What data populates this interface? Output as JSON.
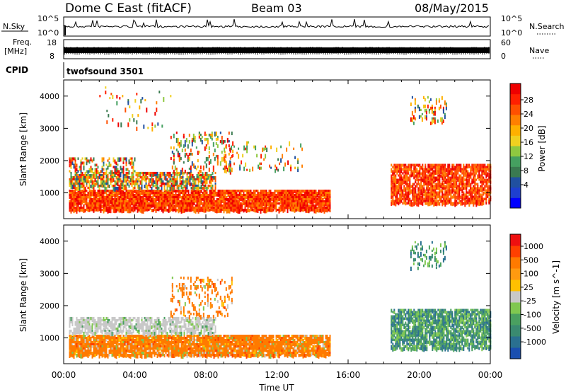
{
  "header": {
    "station": "Dome C East (fitACF)",
    "beam": "Beam 03",
    "date": "08/May/2015"
  },
  "aux_panels": {
    "nsky": {
      "left_label": "N.Sky",
      "top_tick": "10^5",
      "bottom_tick": "10^0",
      "right_top_tick": "10^5",
      "right_bottom_tick": "10^0",
      "right_label": "N.Search"
    },
    "freq": {
      "left_label_1": "Freq.",
      "left_label_2": "[MHz]",
      "top_tick": "18",
      "bottom_tick": "8",
      "right_top_tick": "60",
      "right_bottom_tick": "0",
      "right_label": "Nave"
    },
    "cpid": {
      "left_label": "CPID",
      "program": "twofsound 3501"
    }
  },
  "chart_data": [
    {
      "type": "heatmap",
      "name": "power",
      "ylabel": "Slant Range [km]",
      "ylim": [
        200,
        4500
      ],
      "yticks": [
        1000,
        2000,
        3000,
        4000
      ],
      "xlim": [
        0,
        24
      ],
      "colorbar": {
        "label": "Power [dB]",
        "ticks": [
          "28",
          "24",
          "20",
          "16",
          "12",
          "8",
          "4"
        ],
        "colors": [
          "#0000ff",
          "#1e3fd0",
          "#2050a0",
          "#3a7a50",
          "#45a060",
          "#8fc840",
          "#f0d020",
          "#ffb000",
          "#ff8000",
          "#ff5000",
          "#ff2000",
          "#ee0000"
        ]
      },
      "regions": [
        {
          "t0": 0.3,
          "t1": 15.0,
          "r0": 450,
          "r1": 1100,
          "density": 0.9
        },
        {
          "t0": 0.3,
          "t1": 8.5,
          "r0": 1150,
          "r1": 1650,
          "density": 0.65
        },
        {
          "t0": 0.3,
          "t1": 4.0,
          "r0": 1700,
          "r1": 2100,
          "density": 0.35
        },
        {
          "t0": 6.0,
          "t1": 9.5,
          "r0": 1700,
          "r1": 2900,
          "density": 0.2
        },
        {
          "t0": 9.0,
          "t1": 13.5,
          "r0": 1700,
          "r1": 2600,
          "density": 0.1
        },
        {
          "t0": 18.4,
          "t1": 24.0,
          "r0": 700,
          "r1": 1900,
          "density": 0.75
        },
        {
          "t0": 19.5,
          "t1": 21.5,
          "r0": 3200,
          "r1": 4000,
          "density": 0.25
        },
        {
          "t0": 2.0,
          "t1": 6.0,
          "r0": 3000,
          "r1": 4300,
          "density": 0.05
        }
      ]
    },
    {
      "type": "heatmap",
      "name": "velocity",
      "xlabel": "Time UT",
      "ylabel": "Slant Range [km]",
      "ylim": [
        200,
        4500
      ],
      "yticks": [
        1000,
        2000,
        3000,
        4000
      ],
      "xlim": [
        0,
        24
      ],
      "xticks": [
        "00:00",
        "04:00",
        "08:00",
        "12:00",
        "16:00",
        "20:00",
        "00:00"
      ],
      "colorbar": {
        "label": "Velocity [m s^-1]",
        "ticks": [
          "1000",
          "500",
          "100",
          "25",
          "-25",
          "-100",
          "-500",
          "-1000"
        ],
        "colors": [
          "#1a4fb0",
          "#2a7090",
          "#3a8a70",
          "#4aa060",
          "#80c850",
          "#c8c8c8",
          "#ffc000",
          "#ff9a10",
          "#ff7a00",
          "#ff4000",
          "#ee1010"
        ]
      },
      "regions": [
        {
          "t0": 0.3,
          "t1": 15.0,
          "r0": 450,
          "r1": 1100,
          "density": 0.9
        },
        {
          "t0": 0.3,
          "t1": 8.5,
          "r0": 1150,
          "r1": 1650,
          "density": 0.65
        },
        {
          "t0": 6.0,
          "t1": 9.5,
          "r0": 1700,
          "r1": 2900,
          "density": 0.2
        },
        {
          "t0": 18.4,
          "t1": 24.0,
          "r0": 700,
          "r1": 1900,
          "density": 0.75
        },
        {
          "t0": 19.5,
          "t1": 21.5,
          "r0": 3200,
          "r1": 4000,
          "density": 0.2
        }
      ]
    }
  ]
}
